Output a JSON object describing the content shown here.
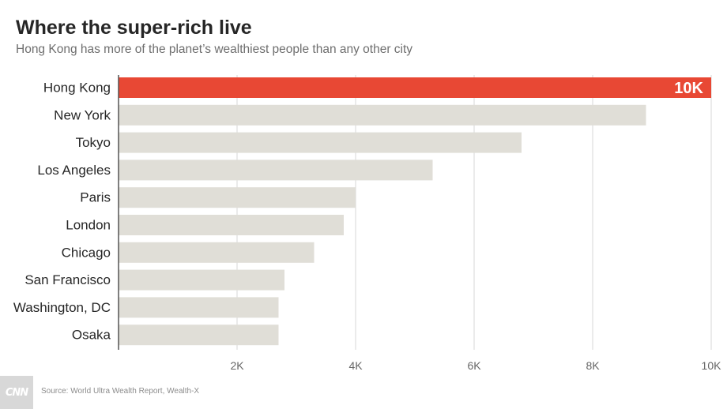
{
  "header": {
    "title": "Where the super-rich live",
    "subtitle": "Hong Kong has more of the planet’s wealthiest people than any other city"
  },
  "footer": {
    "logo_text": "CNN",
    "source": "Source: World Ultra Wealth Report, Wealth-X"
  },
  "colors": {
    "highlight": "#e84834",
    "bar": "#e0ded7",
    "grid": "#d7d7d7",
    "axis": "#555555",
    "label": "#262626",
    "tick": "#666666"
  },
  "chart_data": {
    "type": "bar",
    "orientation": "horizontal",
    "title": "Where the super-rich live",
    "subtitle": "Hong Kong has more of the planet’s wealthiest people than any other city",
    "categories": [
      "Hong Kong",
      "New York",
      "Tokyo",
      "Los Angeles",
      "Paris",
      "London",
      "Chicago",
      "San Francisco",
      "Washington, DC",
      "Osaka"
    ],
    "values": [
      10000,
      8900,
      6800,
      5300,
      4000,
      3800,
      3300,
      2800,
      2700,
      2700
    ],
    "highlight_index": 0,
    "data_labels": [
      {
        "index": 0,
        "text": "10K"
      }
    ],
    "xticks": [
      2000,
      4000,
      6000,
      8000,
      10000
    ],
    "xtick_labels": [
      "2K",
      "4K",
      "6K",
      "8K",
      "10K"
    ],
    "xlim": [
      0,
      10000
    ],
    "xlabel": "",
    "ylabel": "",
    "grid": true
  }
}
